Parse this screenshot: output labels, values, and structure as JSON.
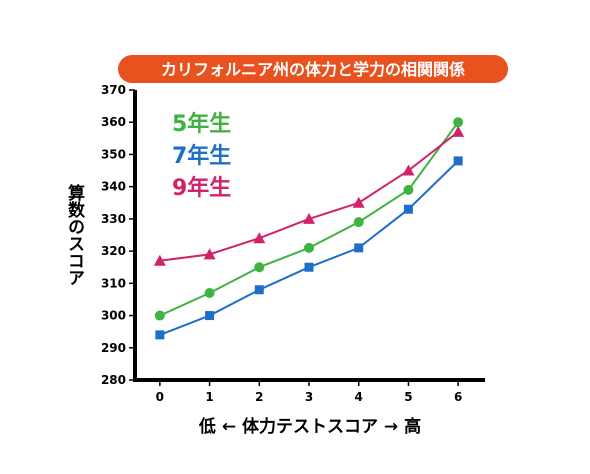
{
  "chart_data": {
    "type": "line",
    "title": "カリフォルニア州の体力と学力の相関関係",
    "xlabel": "低 ← 体力テストスコア → 高",
    "ylabel": "算数のスコア",
    "x": [
      0,
      1,
      2,
      3,
      4,
      5,
      6
    ],
    "xlim": [
      -0.5,
      6.5
    ],
    "ylim": [
      280,
      370
    ],
    "yticks": [
      280,
      290,
      300,
      310,
      320,
      330,
      340,
      350,
      360,
      370
    ],
    "grid": false,
    "legend_position": "top-left",
    "series": [
      {
        "name": "5年生",
        "color": "#3fb33f",
        "marker": "circle",
        "values": [
          300,
          307,
          315,
          321,
          329,
          339,
          360
        ]
      },
      {
        "name": "7年生",
        "color": "#1e6fc8",
        "marker": "square",
        "values": [
          294,
          300,
          308,
          315,
          321,
          333,
          348
        ]
      },
      {
        "name": "9年生",
        "color": "#d1226b",
        "marker": "triangle",
        "values": [
          317,
          319,
          324,
          330,
          335,
          345,
          357
        ]
      }
    ]
  },
  "colors": {
    "title_background": "#e8521e",
    "axis": "#000000"
  }
}
